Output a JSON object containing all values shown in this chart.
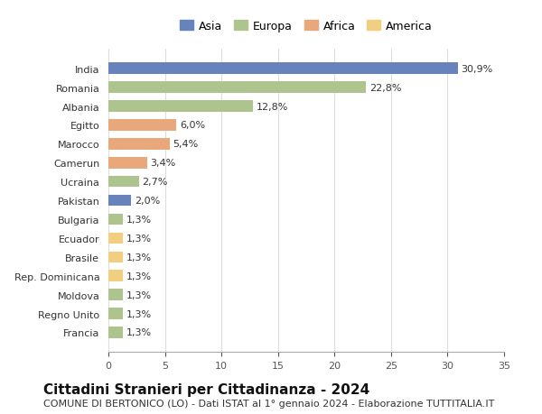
{
  "countries": [
    "India",
    "Romania",
    "Albania",
    "Egitto",
    "Marocco",
    "Camerun",
    "Ucraina",
    "Pakistan",
    "Bulgaria",
    "Ecuador",
    "Brasile",
    "Rep. Dominicana",
    "Moldova",
    "Regno Unito",
    "Francia"
  ],
  "values": [
    30.9,
    22.8,
    12.8,
    6.0,
    5.4,
    3.4,
    2.7,
    2.0,
    1.3,
    1.3,
    1.3,
    1.3,
    1.3,
    1.3,
    1.3
  ],
  "labels": [
    "30,9%",
    "22,8%",
    "12,8%",
    "6,0%",
    "5,4%",
    "3,4%",
    "2,7%",
    "2,0%",
    "1,3%",
    "1,3%",
    "1,3%",
    "1,3%",
    "1,3%",
    "1,3%",
    "1,3%"
  ],
  "continents": [
    "Asia",
    "Europa",
    "Europa",
    "Africa",
    "Africa",
    "Africa",
    "Europa",
    "Asia",
    "Europa",
    "America",
    "America",
    "America",
    "Europa",
    "Europa",
    "Europa"
  ],
  "colors": {
    "Asia": "#6883bc",
    "Europa": "#aec48f",
    "Africa": "#e8a87c",
    "America": "#f0d080"
  },
  "legend_order": [
    "Asia",
    "Europa",
    "Africa",
    "America"
  ],
  "title": "Cittadini Stranieri per Cittadinanza - 2024",
  "subtitle": "COMUNE DI BERTONICO (LO) - Dati ISTAT al 1° gennaio 2024 - Elaborazione TUTTITALIA.IT",
  "xlim": [
    0,
    35
  ],
  "xticks": [
    0,
    5,
    10,
    15,
    20,
    25,
    30,
    35
  ],
  "background_color": "#ffffff",
  "grid_color": "#dddddd",
  "bar_height": 0.6,
  "title_fontsize": 11,
  "subtitle_fontsize": 8,
  "label_fontsize": 8,
  "tick_fontsize": 8
}
